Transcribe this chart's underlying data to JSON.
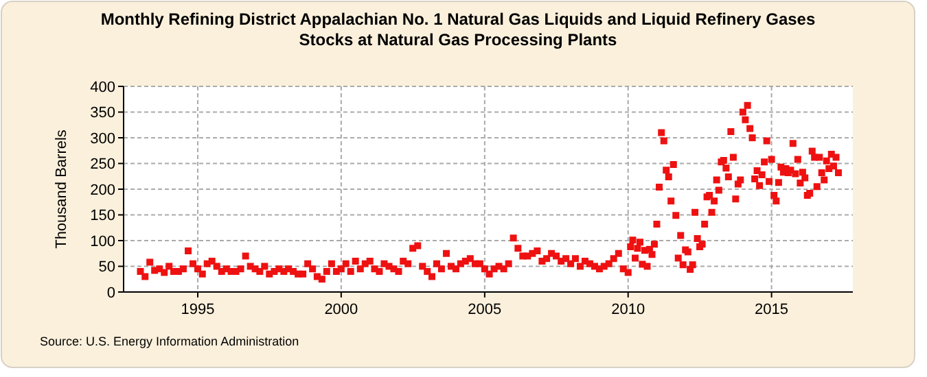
{
  "chart_data": {
    "type": "scatter",
    "title": "Monthly Refining District Appalachian No. 1 Natural Gas Liquids and Liquid Refinery Gases Stocks at Natural Gas Processing Plants",
    "ylabel": "Thousand Barrels",
    "annotations": [
      "Source: U.S. Energy Information Administration"
    ],
    "x": [
      "1993-01",
      "1993-03",
      "1993-05",
      "1993-07",
      "1993-09",
      "1993-11",
      "1994-01",
      "1994-03",
      "1994-05",
      "1994-07",
      "1994-09",
      "1994-11",
      "1995-01",
      "1995-03",
      "1995-05",
      "1995-07",
      "1995-09",
      "1995-11",
      "1996-01",
      "1996-03",
      "1996-05",
      "1996-07",
      "1996-09",
      "1996-11",
      "1997-01",
      "1997-03",
      "1997-05",
      "1997-07",
      "1997-09",
      "1997-11",
      "1998-01",
      "1998-03",
      "1998-05",
      "1998-07",
      "1998-09",
      "1998-11",
      "1999-01",
      "1999-03",
      "1999-05",
      "1999-07",
      "1999-09",
      "1999-11",
      "2000-01",
      "2000-03",
      "2000-05",
      "2000-07",
      "2000-09",
      "2000-11",
      "2001-01",
      "2001-03",
      "2001-05",
      "2001-07",
      "2001-09",
      "2001-11",
      "2002-01",
      "2002-03",
      "2002-05",
      "2002-07",
      "2002-09",
      "2002-11",
      "2003-01",
      "2003-03",
      "2003-05",
      "2003-07",
      "2003-09",
      "2003-11",
      "2004-01",
      "2004-03",
      "2004-05",
      "2004-07",
      "2004-09",
      "2004-11",
      "2005-01",
      "2005-03",
      "2005-05",
      "2005-07",
      "2005-09",
      "2005-11",
      "2006-01",
      "2006-03",
      "2006-05",
      "2006-07",
      "2006-09",
      "2006-11",
      "2007-01",
      "2007-03",
      "2007-05",
      "2007-07",
      "2007-09",
      "2007-11",
      "2008-01",
      "2008-03",
      "2008-05",
      "2008-07",
      "2008-09",
      "2008-11",
      "2009-01",
      "2009-03",
      "2009-05",
      "2009-07",
      "2009-09",
      "2009-11",
      "2010-01",
      "2010-02",
      "2010-03",
      "2010-04",
      "2010-05",
      "2010-06",
      "2010-07",
      "2010-08",
      "2010-09",
      "2010-10",
      "2010-11",
      "2010-12",
      "2011-01",
      "2011-02",
      "2011-03",
      "2011-04",
      "2011-05",
      "2011-06",
      "2011-07",
      "2011-08",
      "2011-09",
      "2011-10",
      "2011-11",
      "2011-12",
      "2012-01",
      "2012-02",
      "2012-03",
      "2012-04",
      "2012-05",
      "2012-06",
      "2012-07",
      "2012-08",
      "2012-09",
      "2012-10",
      "2012-11",
      "2012-12",
      "2013-01",
      "2013-02",
      "2013-03",
      "2013-04",
      "2013-05",
      "2013-06",
      "2013-07",
      "2013-08",
      "2013-09",
      "2013-10",
      "2013-11",
      "2013-12",
      "2014-01",
      "2014-02",
      "2014-03",
      "2014-04",
      "2014-05",
      "2014-06",
      "2014-07",
      "2014-08",
      "2014-09",
      "2014-10",
      "2014-11",
      "2014-12",
      "2015-01",
      "2015-02",
      "2015-03",
      "2015-04",
      "2015-05",
      "2015-06",
      "2015-07",
      "2015-08",
      "2015-09",
      "2015-10",
      "2015-11",
      "2015-12",
      "2016-01",
      "2016-02",
      "2016-03",
      "2016-04",
      "2016-05",
      "2016-06",
      "2016-07",
      "2016-08",
      "2016-09",
      "2016-10",
      "2016-11",
      "2016-12",
      "2017-01",
      "2017-02",
      "2017-03",
      "2017-04",
      "2017-05"
    ],
    "series": [
      {
        "color": "#ee1111",
        "values": [
          40,
          30,
          58,
          42,
          45,
          38,
          50,
          40,
          40,
          45,
          80,
          55,
          45,
          35,
          55,
          60,
          50,
          40,
          45,
          40,
          40,
          45,
          70,
          50,
          45,
          40,
          50,
          35,
          40,
          45,
          40,
          45,
          40,
          35,
          35,
          55,
          45,
          30,
          25,
          40,
          55,
          40,
          45,
          55,
          40,
          60,
          45,
          55,
          60,
          45,
          40,
          55,
          50,
          45,
          40,
          60,
          55,
          85,
          90,
          50,
          40,
          30,
          55,
          45,
          75,
          50,
          45,
          55,
          60,
          65,
          55,
          55,
          45,
          35,
          45,
          50,
          45,
          55,
          105,
          85,
          70,
          70,
          75,
          80,
          60,
          65,
          75,
          70,
          60,
          65,
          55,
          65,
          50,
          60,
          55,
          50,
          45,
          50,
          55,
          65,
          75,
          45,
          38,
          88,
          101,
          66,
          85,
          97,
          54,
          81,
          50,
          83,
          73,
          93,
          132,
          204,
          310,
          294,
          237,
          224,
          177,
          248,
          149,
          66,
          110,
          53,
          82,
          78,
          44,
          53,
          155,
          104,
          88,
          93,
          132,
          185,
          188,
          155,
          177,
          218,
          198,
          253,
          256,
          241,
          224,
          312,
          262,
          181,
          210,
          218,
          350,
          335,
          363,
          318,
          300,
          220,
          236,
          207,
          228,
          253,
          294,
          215,
          258,
          188,
          177,
          213,
          243,
          233,
          240,
          232,
          237,
          289,
          230,
          258,
          212,
          233,
          222,
          188,
          192,
          274,
          262,
          205,
          262,
          232,
          218,
          255,
          240,
          268,
          245,
          262,
          232
        ]
      }
    ],
    "xlim": [
      "1992-06",
      "2017-11"
    ],
    "xticks": [
      "1995",
      "2000",
      "2005",
      "2010",
      "2015"
    ],
    "ylim": [
      0,
      400
    ],
    "yticks": [
      0,
      50,
      100,
      150,
      200,
      250,
      300,
      350,
      400
    ],
    "grid": true,
    "marker": "square"
  }
}
